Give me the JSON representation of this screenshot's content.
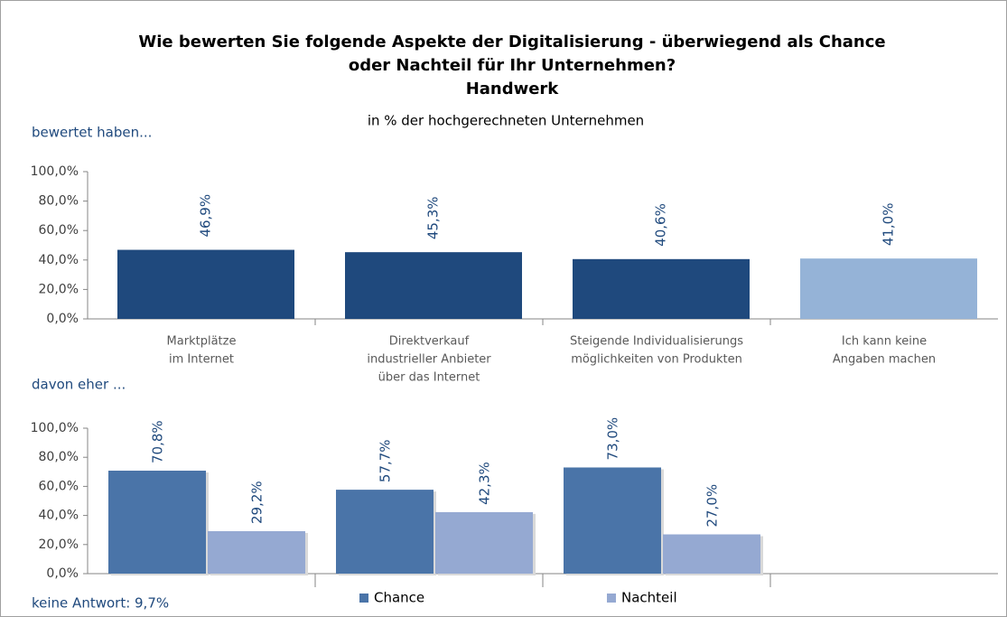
{
  "chart_data": [
    {
      "type": "bar",
      "title": [
        "Wie bewerten Sie folgende Aspekte der Digitalisierung - überwiegend als Chance",
        "oder Nachteil für Ihr Unternehmen?",
        "Handwerk"
      ],
      "subtitle": "in % der hochgerechneten Unternehmen",
      "heading": "bewertet haben...",
      "categories": [
        [
          "Marktplätze",
          "im Internet"
        ],
        [
          "Direktverkauf",
          "industrieller Anbieter",
          "über das Internet"
        ],
        [
          "Steigende Individualisierungs",
          "möglichkeiten von Produkten"
        ],
        [
          "Ich kann keine",
          "Angaben machen"
        ]
      ],
      "values": [
        46.9,
        45.3,
        40.6,
        41.0
      ],
      "value_labels": [
        "46,9%",
        "45,3%",
        "40,6%",
        "41,0%"
      ],
      "colors": [
        "#1f497d",
        "#1f497d",
        "#1f497d",
        "#95b3d7"
      ],
      "ylim": [
        0,
        100
      ],
      "yticks": [
        {
          "value": 0,
          "label": "0,0%"
        },
        {
          "value": 20,
          "label": "20,0%"
        },
        {
          "value": 40,
          "label": "40,0%"
        },
        {
          "value": 60,
          "label": "60,0%"
        },
        {
          "value": 80,
          "label": "80,0%"
        },
        {
          "value": 100,
          "label": "100,0%"
        }
      ]
    },
    {
      "type": "grouped_bar",
      "heading": "davon eher ...",
      "annotation": "keine Antwort: 9,7%",
      "categories": [
        null,
        null,
        null,
        null
      ],
      "series": [
        {
          "name": "Chance",
          "color": "#4a74a8",
          "values": [
            70.8,
            57.7,
            73.0,
            null
          ],
          "value_labels": [
            "70,8%",
            "57,7%",
            "73,0%",
            null
          ]
        },
        {
          "name": "Nachteil",
          "color": "#95a9d2",
          "values": [
            29.2,
            42.3,
            27.0,
            null
          ],
          "value_labels": [
            "29,2%",
            "42,3%",
            "27,0%",
            null
          ]
        }
      ],
      "ylim": [
        0,
        100
      ],
      "yticks": [
        {
          "value": 0,
          "label": "0,0%"
        },
        {
          "value": 20,
          "label": "20,0%"
        },
        {
          "value": 40,
          "label": "40,0%"
        },
        {
          "value": 60,
          "label": "60,0%"
        },
        {
          "value": 80,
          "label": "80,0%"
        },
        {
          "value": 100,
          "label": "100,0%"
        }
      ]
    }
  ]
}
